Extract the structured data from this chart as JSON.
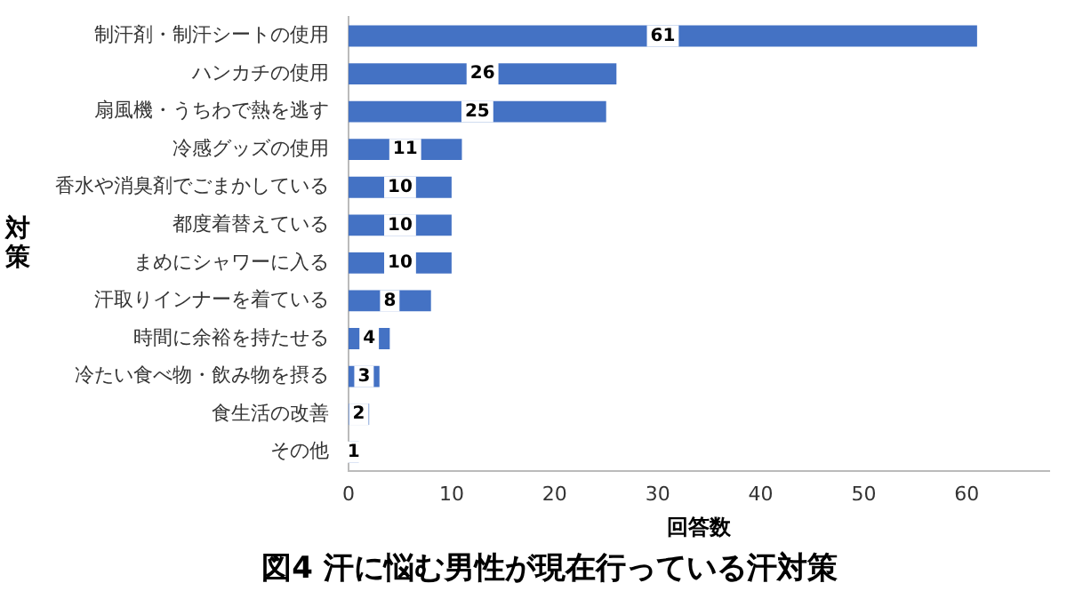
{
  "chart_data": {
    "type": "bar",
    "orientation": "horizontal",
    "title": "図4 汗に悩む男性が現在行っている汗対策",
    "xlabel": "回答数",
    "ylabel": "対策",
    "categories": [
      "制汗剤・制汗シートの使用",
      "ハンカチの使用",
      "扇風機・うちわで熱を逃す",
      "冷感グッズの使用",
      "香水や消臭剤でごまかしている",
      "都度着替えている",
      "まめにシャワーに入る",
      "汗取りインナーを着ている",
      "時間に余裕を持たせる",
      "冷たい食べ物・飲み物を摂る",
      "食生活の改善",
      "その他"
    ],
    "values": [
      61,
      26,
      25,
      11,
      10,
      10,
      10,
      8,
      4,
      3,
      2,
      1
    ],
    "color": "#4472c4",
    "xlim": [
      0,
      68
    ],
    "xticks": [
      0,
      10,
      20,
      30,
      40,
      50,
      60
    ],
    "grid": false,
    "legend": false,
    "data_labels": true
  }
}
